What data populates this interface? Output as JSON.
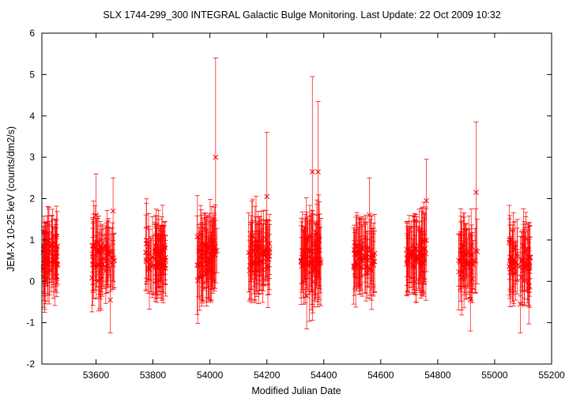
{
  "chart_data": {
    "type": "scatter",
    "title": "SLX 1744-299_300    INTEGRAL Galactic Bulge Monitoring.  Last Update: 22 Oct 2009 10:32",
    "xlabel": "Modified Julian Date",
    "ylabel": "JEM-X 10-25 keV (counts/dm2/s)",
    "xlim": [
      53410,
      55200
    ],
    "ylim": [
      -2,
      6
    ],
    "xticks": [
      53600,
      53800,
      54000,
      54200,
      54400,
      54600,
      54800,
      55000,
      55200
    ],
    "yticks": [
      -2,
      -1,
      0,
      1,
      2,
      3,
      4,
      5,
      6
    ],
    "grid": false,
    "legend": "none",
    "marker": "x",
    "color": "#ff0000",
    "error_bars": true,
    "observation_windows": [
      {
        "x_range": [
          53415,
          53465
        ],
        "y_mean": 0.6,
        "y_spread": 0.5,
        "err_mean": 0.7,
        "n": 55
      },
      {
        "x_range": [
          53585,
          53665
        ],
        "y_mean": 0.55,
        "y_spread": 0.5,
        "err_mean": 0.7,
        "n": 55
      },
      {
        "x_range": [
          53775,
          53845
        ],
        "y_mean": 0.6,
        "y_spread": 0.5,
        "err_mean": 0.7,
        "n": 60
      },
      {
        "x_range": [
          53955,
          54025
        ],
        "y_mean": 0.6,
        "y_spread": 0.55,
        "err_mean": 0.8,
        "n": 60
      },
      {
        "x_range": [
          54135,
          54210
        ],
        "y_mean": 0.65,
        "y_spread": 0.5,
        "err_mean": 0.75,
        "n": 60
      },
      {
        "x_range": [
          54320,
          54390
        ],
        "y_mean": 0.6,
        "y_spread": 0.55,
        "err_mean": 0.8,
        "n": 60
      },
      {
        "x_range": [
          54505,
          54580
        ],
        "y_mean": 0.65,
        "y_spread": 0.5,
        "err_mean": 0.7,
        "n": 55
      },
      {
        "x_range": [
          54690,
          54760
        ],
        "y_mean": 0.65,
        "y_spread": 0.5,
        "err_mean": 0.75,
        "n": 60
      },
      {
        "x_range": [
          54870,
          54940
        ],
        "y_mean": 0.55,
        "y_spread": 0.5,
        "err_mean": 0.7,
        "n": 45
      },
      {
        "x_range": [
          55050,
          55125
        ],
        "y_mean": 0.55,
        "y_spread": 0.5,
        "err_mean": 0.7,
        "n": 55
      }
    ],
    "notable_points": [
      {
        "x": 54020,
        "y": 3.0,
        "err": 2.4
      },
      {
        "x": 54360,
        "y": 2.65,
        "err": 2.3
      },
      {
        "x": 54380,
        "y": 2.65,
        "err": 1.7
      },
      {
        "x": 54935,
        "y": 2.15,
        "err": 1.7
      },
      {
        "x": 54200,
        "y": 2.05,
        "err": 1.55
      },
      {
        "x": 54760,
        "y": 1.95,
        "err": 1.0
      },
      {
        "x": 53660,
        "y": 1.7,
        "err": 0.8
      },
      {
        "x": 53600,
        "y": 1.6,
        "err": 1.0
      },
      {
        "x": 54560,
        "y": 1.6,
        "err": 0.9
      },
      {
        "x": 54340,
        "y": -0.35,
        "err": 0.8
      },
      {
        "x": 53650,
        "y": -0.45,
        "err": 0.8
      },
      {
        "x": 54915,
        "y": -0.45,
        "err": 0.75
      },
      {
        "x": 55090,
        "y": -0.55,
        "err": 0.7
      },
      {
        "x": 55120,
        "y": 0.0,
        "err": 0.6
      },
      {
        "x": 53420,
        "y": 0.05,
        "err": 0.8
      }
    ]
  }
}
